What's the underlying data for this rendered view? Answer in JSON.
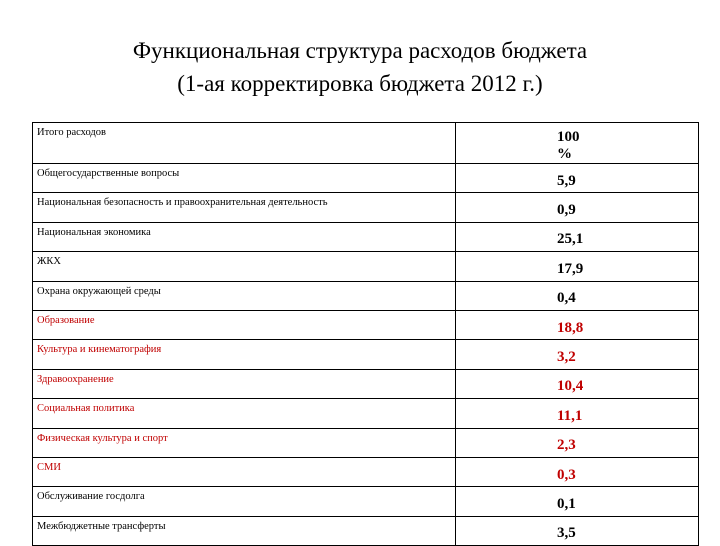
{
  "title": {
    "line1": "Функциональная структура расходов бюджета",
    "line2": "(1-ая корректировка бюджета 2012 г.)"
  },
  "colors": {
    "highlight": "#c00000",
    "text": "#000000"
  },
  "rows": [
    {
      "name": "Итого расходов",
      "value": "100 %",
      "highlight": false
    },
    {
      "name": "Общегосударственные вопросы",
      "value": "5,9",
      "highlight": false
    },
    {
      "name": "Национальная безопасность и правоохранительная деятельность",
      "value": "0,9",
      "highlight": false
    },
    {
      "name": "Национальная экономика",
      "value": "25,1",
      "highlight": false
    },
    {
      "name": "ЖКХ",
      "value": "17,9",
      "highlight": false
    },
    {
      "name": "Охрана окружающей среды",
      "value": "0,4",
      "highlight": false
    },
    {
      "name": "Образование",
      "value": "18,8",
      "highlight": true
    },
    {
      "name": "Культура и кинематография",
      "value": "3,2",
      "highlight": true
    },
    {
      "name": "Здравоохранение",
      "value": "10,4",
      "highlight": true
    },
    {
      "name": "Социальная политика",
      "value": "11,1",
      "highlight": true
    },
    {
      "name": "Физическая культура и спорт",
      "value": "2,3",
      "highlight": true
    },
    {
      "name": "СМИ",
      "value": "0,3",
      "highlight": true
    },
    {
      "name": "Обслуживание госдолга",
      "value": "0,1",
      "highlight": false
    },
    {
      "name": "Межбюджетные трансферты",
      "value": "3,5",
      "highlight": false
    }
  ]
}
